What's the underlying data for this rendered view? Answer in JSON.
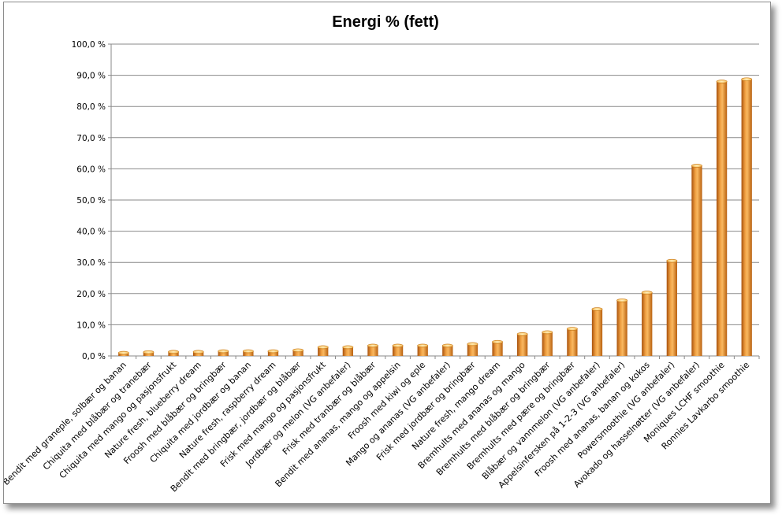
{
  "chart_data": {
    "type": "bar",
    "title": "Energi % (fett)",
    "xlabel": "",
    "ylabel": "",
    "ylim": [
      0,
      100
    ],
    "yticks": [
      "0,0 %",
      "10,0 %",
      "20,0 %",
      "30,0 %",
      "40,0 %",
      "50,0 %",
      "60,0 %",
      "70,0 %",
      "80,0 %",
      "90,0 %",
      "100,0 %"
    ],
    "grid": true,
    "legend": "none",
    "bar_color": "#e8902a",
    "categories": [
      "Bendit med graneple, solbær og banan",
      "Chiquita med blåbær og tranebær",
      "Chiquita med mango og pasjonsfrukt",
      "Nature fresh, blueberry dream",
      "Froosh med blåbær og bringbær",
      "Chiquita med jordbær og banan",
      "Nature fresh, raspberry dream",
      "Bendit med bringbær, jordbær og blåbær",
      "Frisk med mango og pasjonsfrukt",
      "Jordbær og melon (VG anbefaler)",
      "Frisk med tranbær og blåbær",
      "Bendit med ananas, mango og appelsin",
      "Froosh med kiwi og eple",
      "Mango og ananas (VG anbefaler)",
      "Frisk med jordbær og bringbær",
      "Nature fresh, mango dream",
      "Bremhults med ananas og mango",
      "Bremhults med blåbær og bringbær",
      "Bremhults med pære og bringbær",
      "Blåbær og vannmelon (VG anbefaler)",
      "Appelsinfersken på 1-2-3 (VG anbefaler)",
      "Froosh med ananas, banan og kokos",
      "Powersmoothie (VG anbefaler)",
      "Avokado og hasselnøtter (VG anbefaler)",
      "Moniques LCHF smoothie",
      "Ronnies Lavkarbo smoothie"
    ],
    "values": [
      1.0,
      1.2,
      1.3,
      1.3,
      1.5,
      1.5,
      1.5,
      1.8,
      2.8,
      2.8,
      3.3,
      3.3,
      3.3,
      3.3,
      3.8,
      4.5,
      7.0,
      7.6,
      8.7,
      15.0,
      17.8,
      20.3,
      30.5,
      61.0,
      88.0,
      88.7
    ]
  }
}
